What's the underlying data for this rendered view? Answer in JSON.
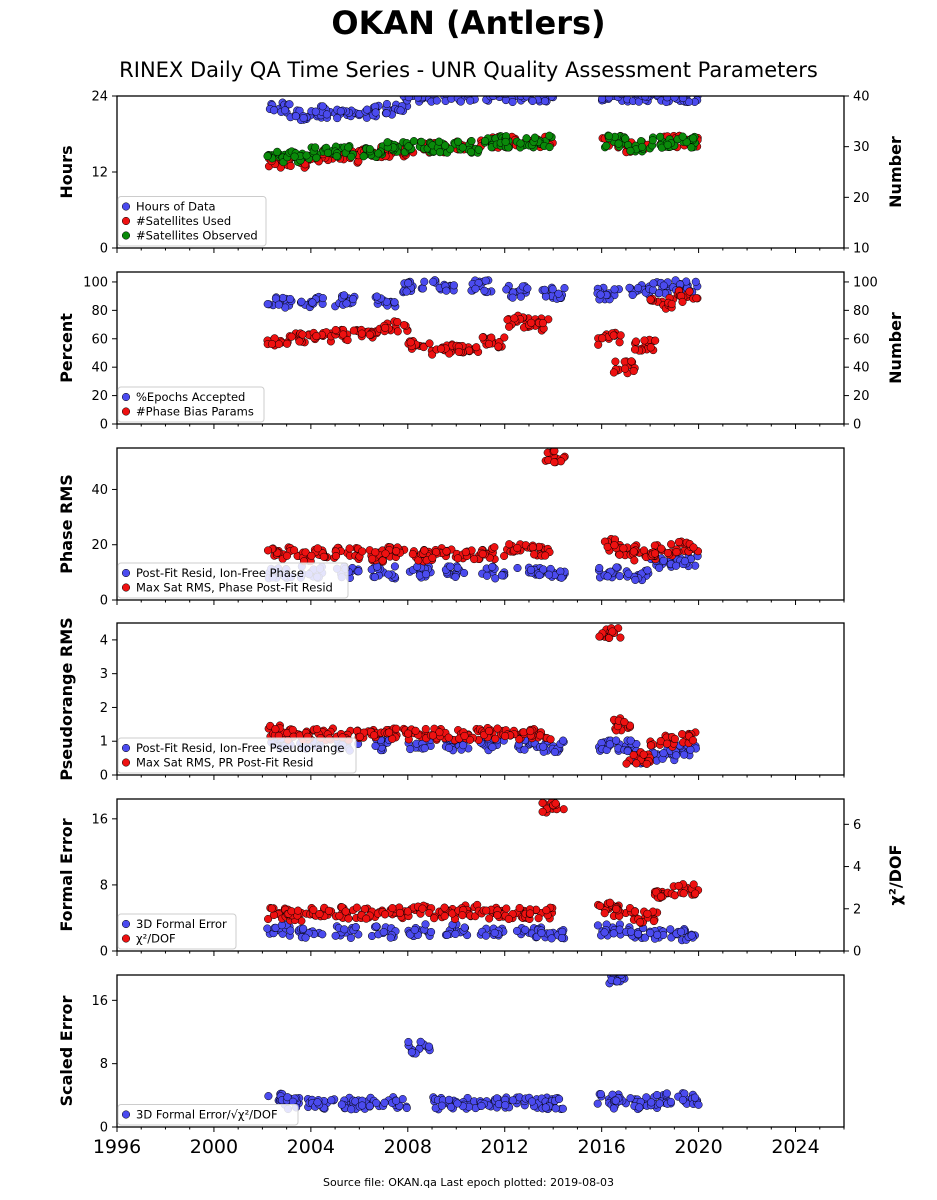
{
  "figure": {
    "title": "OKAN (Antlers)",
    "subtitle": "RINEX Daily QA Time Series - UNR Quality Assessment Parameters",
    "footer": "Source file: OKAN.qa Last epoch plotted: 2019-08-03"
  },
  "colors": {
    "blue": "#4b4bef",
    "red": "#ee1111",
    "green": "#0a8a0a",
    "edge": "#000000"
  },
  "chart_data": [
    {
      "type": "scatter",
      "xlim": [
        1996,
        2026
      ],
      "xticks": [
        "1996",
        "2000",
        "2004",
        "2008",
        "2012",
        "2016",
        "2020",
        "2024"
      ],
      "ylabel": "Hours",
      "ylim": [
        0,
        24
      ],
      "yticks": [
        0,
        12,
        24
      ],
      "y2label": "Number",
      "y2lim": [
        10,
        40
      ],
      "y2ticks": [
        10,
        20,
        30,
        40
      ],
      "series": [
        {
          "name": "Hours of Data",
          "axis": "left",
          "color": "blue",
          "x": [
            2002.7,
            2003.5,
            2004.5,
            2005.5,
            2006.5,
            2007.5,
            2008.2,
            2008.5,
            2009.5,
            2010.5,
            2011.5,
            2012.5,
            2013.5,
            2016.5,
            2017.5,
            2018.0,
            2019.0,
            2019.5
          ],
          "y": [
            22,
            21,
            21.5,
            21,
            21.5,
            22,
            24,
            24,
            24,
            24,
            24,
            24,
            24,
            24,
            24,
            24,
            24,
            24
          ]
        },
        {
          "name": "#Satellites Used",
          "axis": "right",
          "color": "red",
          "x": [
            2002.7,
            2003.5,
            2004.5,
            2005.5,
            2006.5,
            2007.5,
            2008.5,
            2009.5,
            2010.5,
            2011.5,
            2012.5,
            2013.5,
            2016.5,
            2017.5,
            2018.5,
            2019.5
          ],
          "y": [
            27,
            27,
            28,
            28,
            29,
            29,
            30,
            30,
            30,
            31,
            31,
            31,
            31,
            30,
            31,
            31
          ]
        },
        {
          "name": "#Satellites Observed",
          "axis": "right",
          "color": "green",
          "x": [
            2002.7,
            2003.5,
            2004.5,
            2005.5,
            2006.5,
            2007.5,
            2008.5,
            2009.5,
            2010.5,
            2011.5,
            2012.5,
            2013.5,
            2016.5,
            2017.5,
            2018.5,
            2019.5
          ],
          "y": [
            28,
            28,
            29,
            29,
            29,
            30,
            30,
            30,
            30,
            31,
            31,
            31,
            31,
            30,
            31,
            31
          ]
        }
      ]
    },
    {
      "type": "scatter",
      "xlim": [
        1996,
        2026
      ],
      "xticks": [
        "1996",
        "2000",
        "2004",
        "2008",
        "2012",
        "2016",
        "2020",
        "2024"
      ],
      "ylabel": "Percent",
      "ylim": [
        0,
        107
      ],
      "yticks": [
        0,
        20,
        40,
        60,
        80,
        100
      ],
      "y2label": "Number",
      "y2lim": [
        0,
        107
      ],
      "y2ticks": [
        0,
        20,
        40,
        60,
        80,
        100
      ],
      "series": [
        {
          "name": "%Epochs Accepted",
          "axis": "left",
          "color": "blue",
          "x": [
            2002.7,
            2004,
            2005.5,
            2007,
            2008.2,
            2009.5,
            2011,
            2012.5,
            2014,
            2016.3,
            2017.5,
            2018.5,
            2019.5
          ],
          "y": [
            86,
            86,
            87,
            87,
            97,
            98,
            97,
            93,
            92,
            92,
            94,
            96,
            97
          ]
        },
        {
          "name": "#Phase Bias Params",
          "axis": "right",
          "color": "red",
          "x": [
            2002.7,
            2003.5,
            2004.5,
            2005.5,
            2006.5,
            2007.5,
            2008.5,
            2009.5,
            2010.5,
            2011.5,
            2012.5,
            2013.5,
            2016.3,
            2017,
            2017.8,
            2018.5,
            2019.5
          ],
          "y": [
            58,
            60,
            62,
            63,
            65,
            68,
            55,
            52,
            54,
            58,
            72,
            70,
            60,
            40,
            55,
            85,
            90
          ]
        }
      ]
    },
    {
      "type": "scatter",
      "xlim": [
        1996,
        2026
      ],
      "xticks": [
        "1996",
        "2000",
        "2004",
        "2008",
        "2012",
        "2016",
        "2020",
        "2024"
      ],
      "ylabel": "Phase RMS",
      "ylim": [
        0,
        55
      ],
      "yticks": [
        0,
        20,
        40
      ],
      "series": [
        {
          "name": "Post-Fit Resid, Ion-Free Phase",
          "color": "blue",
          "x": [
            2002.7,
            2004,
            2005.5,
            2007,
            2008.5,
            2010,
            2011.5,
            2013,
            2014,
            2016.3,
            2017.5,
            2018.5,
            2019.5
          ],
          "y": [
            10,
            10,
            10,
            10,
            10,
            10,
            10,
            10,
            10,
            10,
            9,
            13,
            14
          ]
        },
        {
          "name": "Max Sat RMS, Phase Post-Fit Resid",
          "color": "red",
          "x": [
            2002.7,
            2003.5,
            2004.5,
            2005.5,
            2006.5,
            2007.5,
            2008.5,
            2009.5,
            2010.5,
            2011.5,
            2012.5,
            2013.5,
            2014,
            2016.3,
            2017,
            2017.8,
            2018.5,
            2019.5
          ],
          "y": [
            17,
            16,
            17,
            17,
            16,
            17,
            16,
            17,
            17,
            17,
            18,
            18,
            52,
            20,
            18,
            16,
            18,
            19
          ]
        }
      ]
    },
    {
      "type": "scatter",
      "xlim": [
        1996,
        2026
      ],
      "xticks": [
        "1996",
        "2000",
        "2004",
        "2008",
        "2012",
        "2016",
        "2020",
        "2024"
      ],
      "ylabel": "Pseudorange RMS",
      "ylim": [
        0,
        4.5
      ],
      "yticks": [
        0,
        1,
        2,
        3,
        4
      ],
      "series": [
        {
          "name": "Post-Fit Resid, Ion-Free Pseudorange",
          "color": "blue",
          "x": [
            2002.7,
            2004,
            2005.5,
            2007,
            2008.5,
            2010,
            2011.5,
            2013,
            2014,
            2016.3,
            2017,
            2017.8,
            2018.5,
            2019.5
          ],
          "y": [
            0.95,
            0.9,
            0.9,
            0.9,
            0.9,
            0.9,
            0.9,
            0.9,
            0.85,
            0.85,
            0.85,
            0.5,
            0.6,
            0.7
          ]
        },
        {
          "name": "Max Sat RMS, PR Post-Fit Resid",
          "color": "red",
          "x": [
            2002.7,
            2003.5,
            2004.5,
            2005.5,
            2006.5,
            2007.5,
            2008.5,
            2009.5,
            2010.5,
            2011.5,
            2012.5,
            2013.5,
            2016.3,
            2017,
            2017.5,
            2018.5,
            2019.5
          ],
          "y": [
            1.3,
            1.2,
            1.2,
            1.2,
            1.2,
            1.2,
            1.2,
            1.2,
            1.2,
            1.25,
            1.2,
            1.2,
            4.2,
            1.5,
            0.5,
            1.0,
            1.1
          ]
        }
      ]
    },
    {
      "type": "scatter",
      "xlim": [
        1996,
        2026
      ],
      "xticks": [
        "1996",
        "2000",
        "2004",
        "2008",
        "2012",
        "2016",
        "2020",
        "2024"
      ],
      "ylabel": "Formal Error",
      "ylim": [
        0,
        18.4
      ],
      "yticks": [
        0,
        8,
        16
      ],
      "y2label": "χ²/DOF",
      "y2lim": [
        0,
        7.2
      ],
      "y2ticks": [
        0,
        2,
        4,
        6
      ],
      "series": [
        {
          "name": "3D Formal Error",
          "axis": "left",
          "color": "blue",
          "x": [
            2002.7,
            2004,
            2005.5,
            2007,
            2008.5,
            2010,
            2011.5,
            2013,
            2014,
            2016.3,
            2017.5,
            2018.5,
            2019.5
          ],
          "y": [
            2.5,
            2.3,
            2.3,
            2.3,
            2.5,
            2.5,
            2.4,
            2.2,
            2.2,
            2.5,
            2.3,
            2.2,
            2.0
          ]
        },
        {
          "name": "χ²/DOF",
          "axis": "right",
          "color": "red",
          "x": [
            2002.7,
            2003.5,
            2004.5,
            2005.5,
            2006.5,
            2007.5,
            2008.5,
            2009.5,
            2010.5,
            2011.5,
            2012.5,
            2013.5,
            2014,
            2016.3,
            2017,
            2017.8,
            2018.5,
            2019.5
          ],
          "y": [
            1.8,
            1.7,
            1.8,
            1.8,
            1.8,
            1.8,
            1.9,
            1.8,
            1.9,
            1.8,
            1.8,
            1.8,
            6.8,
            2.0,
            1.8,
            1.6,
            2.8,
            2.9
          ]
        }
      ]
    },
    {
      "type": "scatter",
      "xlim": [
        1996,
        2026
      ],
      "xticks": [
        "1996",
        "2000",
        "2004",
        "2008",
        "2012",
        "2016",
        "2020",
        "2024"
      ],
      "ylabel": "Scaled Error",
      "ylim": [
        0,
        19.2
      ],
      "yticks": [
        0,
        8,
        16
      ],
      "series": [
        {
          "name": "3D Formal Error/√χ²/DOF",
          "color": "blue",
          "x": [
            2002.7,
            2003.5,
            2004.5,
            2005.5,
            2006.5,
            2007.5,
            2008.5,
            2009.5,
            2010.5,
            2011.5,
            2012.5,
            2013.5,
            2014,
            2016.3,
            2016.5,
            2017,
            2017.8,
            2018.5,
            2019.5
          ],
          "y": [
            3.5,
            3,
            3,
            3,
            3,
            3,
            10,
            3,
            3,
            3,
            3,
            3,
            3,
            3.5,
            18.8,
            3,
            3,
            3.5,
            3.5
          ]
        }
      ]
    }
  ]
}
